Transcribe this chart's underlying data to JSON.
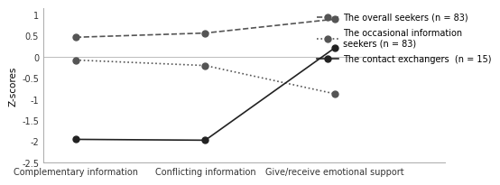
{
  "x_labels": [
    "Complementary information",
    "Conflicting information",
    "Give/receive emotional support"
  ],
  "series": [
    {
      "name": "The overall seekers (n = 83)",
      "values": [
        0.47,
        0.57,
        0.9
      ],
      "linestyle": "dashed",
      "marker": "o",
      "color": "#555555"
    },
    {
      "name": "The occasional information\nseekers (n = 83)",
      "values": [
        -0.07,
        -0.2,
        -0.87
      ],
      "linestyle": "dotted",
      "marker": "o",
      "color": "#555555"
    },
    {
      "name": "The contact exchangers  (n = 15)",
      "values": [
        -1.95,
        -1.97,
        0.22
      ],
      "linestyle": "solid",
      "marker": "o",
      "color": "#222222"
    }
  ],
  "ylabel": "Z-scores",
  "ylim": [
    -2.5,
    1.15
  ],
  "yticks": [
    -2.5,
    -2.0,
    -1.5,
    -1.0,
    -0.5,
    0.0,
    0.5,
    1.0
  ],
  "ytick_labels": [
    "-2.5",
    "-2",
    "-1.5",
    "-1",
    "-0.5",
    "0",
    "0.5",
    "1"
  ],
  "background_color": "#ffffff",
  "legend_fontsize": 7.0,
  "axis_fontsize": 7.0,
  "ylabel_fontsize": 7.5,
  "line_color": "#444444",
  "marker_size": 5,
  "line_width": 1.2
}
